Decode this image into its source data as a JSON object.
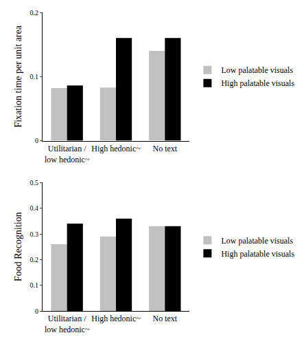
{
  "chart_data": [
    {
      "type": "bar",
      "y_label": "Fixation time per unit area",
      "categories": [
        "Utilitarian / low hedonic~",
        "High hedonic~",
        "No text"
      ],
      "series": [
        {
          "name": "Low palatable visuals",
          "color": "#c0c0c0",
          "values": [
            0.082,
            0.083,
            0.14
          ]
        },
        {
          "name": "High palatable visuals",
          "color": "#000000",
          "values": [
            0.086,
            0.16,
            0.16
          ]
        }
      ],
      "ylim": [
        0,
        0.2
      ],
      "yticks": [
        0,
        0.1,
        0.2
      ],
      "grid": false,
      "legend": "right"
    },
    {
      "type": "bar",
      "y_label": "Food Recognition",
      "categories": [
        "Utilitarian / low hedonic~",
        "High hedonic~",
        "No text"
      ],
      "series": [
        {
          "name": "Low palatable visuals",
          "color": "#c0c0c0",
          "values": [
            0.26,
            0.29,
            0.33
          ]
        },
        {
          "name": "High palatable visuals",
          "color": "#000000",
          "values": [
            0.34,
            0.36,
            0.33
          ]
        }
      ],
      "ylim": [
        0,
        0.5
      ],
      "yticks": [
        0,
        0.1,
        0.2,
        0.3,
        0.4,
        0.5
      ],
      "grid": false,
      "legend": "right"
    }
  ]
}
